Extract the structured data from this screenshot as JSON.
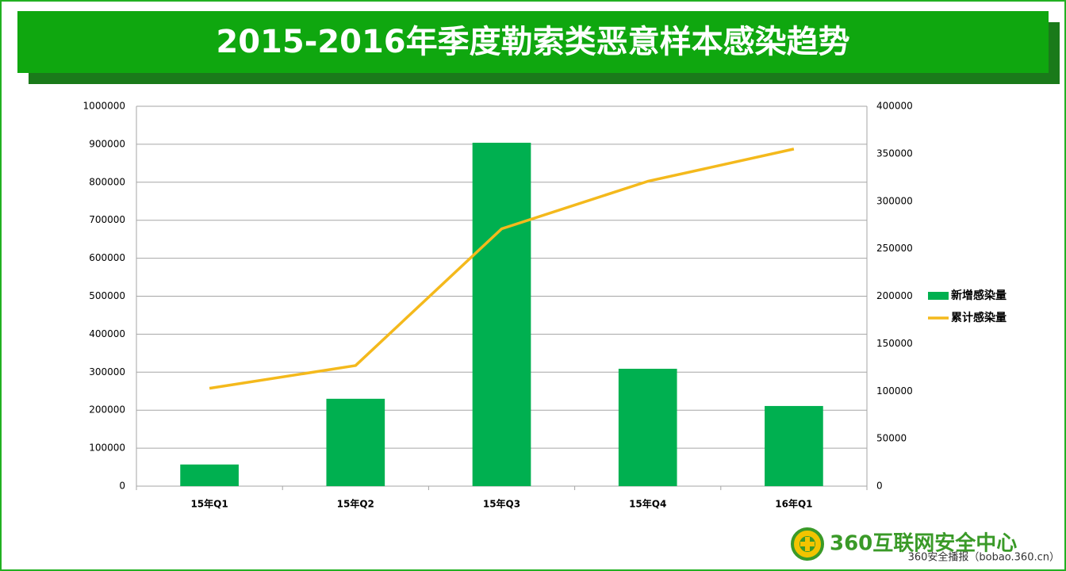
{
  "chart_data": {
    "type": "bar",
    "title": "2015-2016年季度勒索类恶意样本感染趋势",
    "categories": [
      "15年Q1",
      "15年Q2",
      "15年Q3",
      "15年Q4",
      "16年Q1"
    ],
    "series": [
      {
        "name": "新增感染量",
        "type": "bar",
        "color": "#00b050",
        "values": [
          57000,
          230000,
          904000,
          309000,
          211000
        ]
      },
      {
        "name": "累计感染量",
        "type": "line",
        "color": "#f4b91c",
        "axis": "y2",
        "values": [
          103000,
          127000,
          271000,
          321000,
          355000
        ]
      }
    ],
    "ylim": [
      0,
      1000000
    ],
    "yticks": [
      0,
      100000,
      200000,
      300000,
      400000,
      500000,
      600000,
      700000,
      800000,
      900000,
      1000000
    ],
    "y2lim": [
      0,
      400000
    ],
    "y2ticks": [
      0,
      50000,
      100000,
      150000,
      200000,
      250000,
      300000,
      350000,
      400000
    ],
    "grid": true,
    "legend": "right",
    "logo_text": "360互联网安全中心",
    "source": "360安全播报（bobao.360.cn）"
  }
}
